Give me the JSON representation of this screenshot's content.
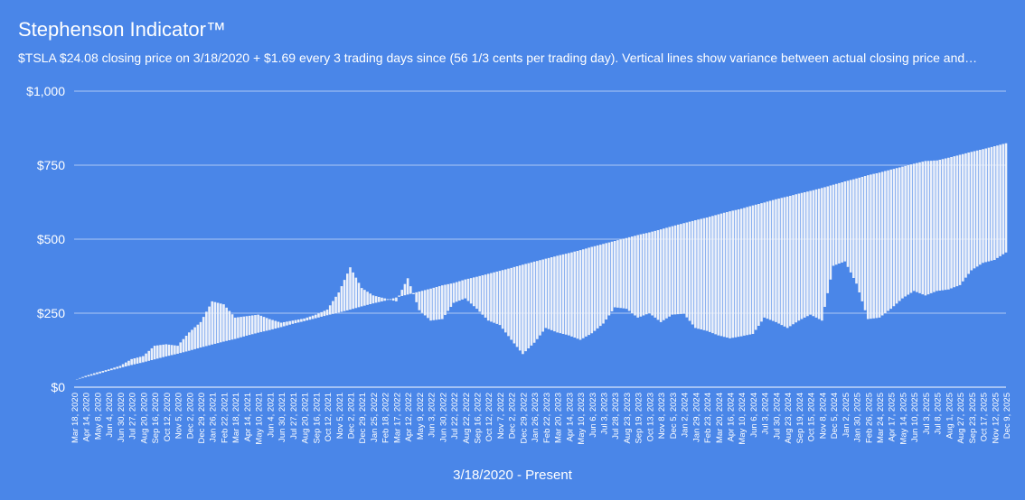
{
  "chart_data": {
    "type": "area",
    "title": "Stephenson Indicator™",
    "subtitle": "$TSLA $24.08 closing price on 3/18/2020 + $1.69 every 3 trading days since (56 1/3 cents per trading day). Vertical lines show variance between actual closing price and…",
    "xlabel": "3/18/2020 - Present",
    "ylabel": "",
    "ylim": [
      0,
      1000
    ],
    "y_ticks": [
      "$0",
      "$250",
      "$500",
      "$750",
      "$1,000"
    ],
    "y_tick_values": [
      0,
      250,
      500,
      750,
      1000
    ],
    "grid": true,
    "x_tick_labels": [
      "Mar 18, 2020",
      "Apr 14, 2020",
      "May 8, 2020",
      "Jun 4, 2020",
      "Jun 30, 2020",
      "Jul 27, 2020",
      "Aug 20, 2020",
      "Sep 16, 2020",
      "Oct 12, 2020",
      "Nov 5, 2020",
      "Dec 2, 2020",
      "Dec 29, 2020",
      "Jan 26, 2021",
      "Feb 22, 2021",
      "Mar 18, 2021",
      "Apr 14, 2021",
      "May 10, 2021",
      "Jun 4, 2021",
      "Jun 30, 2021",
      "Jul 27, 2021",
      "Aug 20, 2021",
      "Sep 16, 2021",
      "Oct 12, 2021",
      "Nov 5, 2021",
      "Dec 2, 2021",
      "Dec 29, 2021",
      "Jan 25, 2022",
      "Feb 18, 2022",
      "Mar 17, 2022",
      "Apr 12, 2022",
      "May 9, 2022",
      "Jun 3, 2022",
      "Jun 30, 2022",
      "Jul 22, 2022",
      "Aug 22, 2022",
      "Sep 16, 2022",
      "Oct 12, 2022",
      "Nov 7, 2022",
      "Dec 2, 2022",
      "Dec 29, 2022",
      "Jan 26, 2023",
      "Feb 22, 2023",
      "Mar 20, 2023",
      "Apr 14, 2023",
      "May 10, 2023",
      "Jun 6, 2023",
      "Jul 3, 2023",
      "Jul 28, 2023",
      "Aug 23, 2023",
      "Sep 19, 2023",
      "Oct 13, 2023",
      "Nov 8, 2023",
      "Dec 5, 2023",
      "Jan 2, 2024",
      "Jan 29, 2024",
      "Feb 23, 2024",
      "Mar 20, 2024",
      "Apr 16, 2024",
      "May 10, 2024",
      "Jun 6, 2024",
      "Jul 3, 2024",
      "Jul 30, 2024",
      "Aug 23, 2024",
      "Sep 19, 2024",
      "Oct 15, 2024",
      "Nov 8, 2024",
      "Dec 5, 2024",
      "Jan 2, 2025",
      "Jan 30, 2025",
      "Feb 26, 2025",
      "Mar 24, 2025",
      "Apr 17, 2025",
      "May 14, 2025",
      "Jun 10, 2025",
      "Jul 3, 2025",
      "Jul 8, 2025",
      "Aug 1, 2025",
      "Aug 27, 2025",
      "Sep 23, 2025",
      "Oct 17, 2025",
      "Nov 12, 2025",
      "Dec 9, 2025"
    ],
    "series": [
      {
        "name": "",
        "x": [
          "3/18/2020",
          "4/14/2020",
          "5/8/2020",
          "6/4/2020",
          "6/30/2020",
          "7/27/2020",
          "8/20/2020",
          "9/16/2020",
          "10/12/2020",
          "11/5/2020",
          "12/2/2020",
          "12/29/2020",
          "1/26/2021",
          "2/22/2021",
          "3/18/2021",
          "4/14/2021",
          "5/10/2021",
          "6/4/2021",
          "6/30/2021",
          "7/27/2021",
          "8/20/2021",
          "9/16/2021",
          "10/12/2021",
          "11/5/2021",
          "12/2/2021",
          "12/29/2021",
          "1/25/2022",
          "2/18/2022",
          "3/17/2022",
          "4/12/2022",
          "5/9/2022",
          "6/3/2022",
          "6/30/2022",
          "7/22/2022",
          "8/22/2022",
          "9/16/2022",
          "10/12/2022",
          "11/7/2022",
          "12/2/2022",
          "12/29/2022",
          "1/26/2023",
          "2/22/2023",
          "3/20/2023",
          "4/14/2023",
          "5/10/2023",
          "6/6/2023",
          "7/3/2023",
          "7/28/2023",
          "8/23/2023",
          "9/19/2023",
          "10/13/2023",
          "11/8/2023",
          "12/5/2023",
          "1/2/2024",
          "1/29/2024",
          "2/23/2024",
          "3/20/2024",
          "4/16/2024",
          "5/10/2024",
          "6/6/2024",
          "7/3/2024",
          "7/30/2024",
          "8/23/2024",
          "9/19/2024",
          "10/15/2024",
          "11/8/2024",
          "12/5/2024",
          "1/2/2025",
          "1/30/2025",
          "2/26/2025",
          "3/24/2025",
          "4/17/2025",
          "5/14/2025",
          "6/10/2025",
          "7/3/2025",
          "7/8/2025",
          "8/1/2025",
          "8/27/2025",
          "9/23/2025",
          "10/17/2025",
          "11/12/2025",
          "12/9/2025"
        ],
        "actual": [
          24,
          38,
          50,
          60,
          72,
          95,
          105,
          140,
          145,
          140,
          185,
          220,
          290,
          280,
          235,
          240,
          245,
          230,
          218,
          225,
          232,
          245,
          262,
          320,
          405,
          335,
          310,
          300,
          290,
          368,
          260,
          225,
          230,
          285,
          300,
          265,
          225,
          210,
          160,
          112,
          150,
          200,
          185,
          175,
          160,
          182,
          215,
          270,
          265,
          235,
          250,
          220,
          245,
          248,
          200,
          190,
          175,
          165,
          172,
          180,
          235,
          220,
          200,
          225,
          245,
          225,
          410,
          425,
          350,
          230,
          235,
          265,
          300,
          325,
          310,
          325,
          330,
          345,
          395,
          420,
          430,
          455
        ],
        "indicator": [
          24,
          34,
          44,
          55,
          65,
          75,
          84,
          94,
          104,
          113,
          123,
          134,
          144,
          154,
          163,
          174,
          184,
          193,
          203,
          214,
          223,
          233,
          243,
          252,
          262,
          273,
          283,
          292,
          303,
          313,
          323,
          333,
          344,
          352,
          364,
          373,
          383,
          393,
          403,
          414,
          424,
          434,
          444,
          453,
          463,
          474,
          484,
          494,
          504,
          514,
          523,
          533,
          544,
          554,
          564,
          573,
          584,
          594,
          603,
          614,
          624,
          635,
          644,
          654,
          663,
          673,
          684,
          695,
          705,
          716,
          725,
          735,
          745,
          755,
          764,
          766,
          775,
          785,
          795,
          804,
          814,
          824
        ]
      }
    ]
  }
}
